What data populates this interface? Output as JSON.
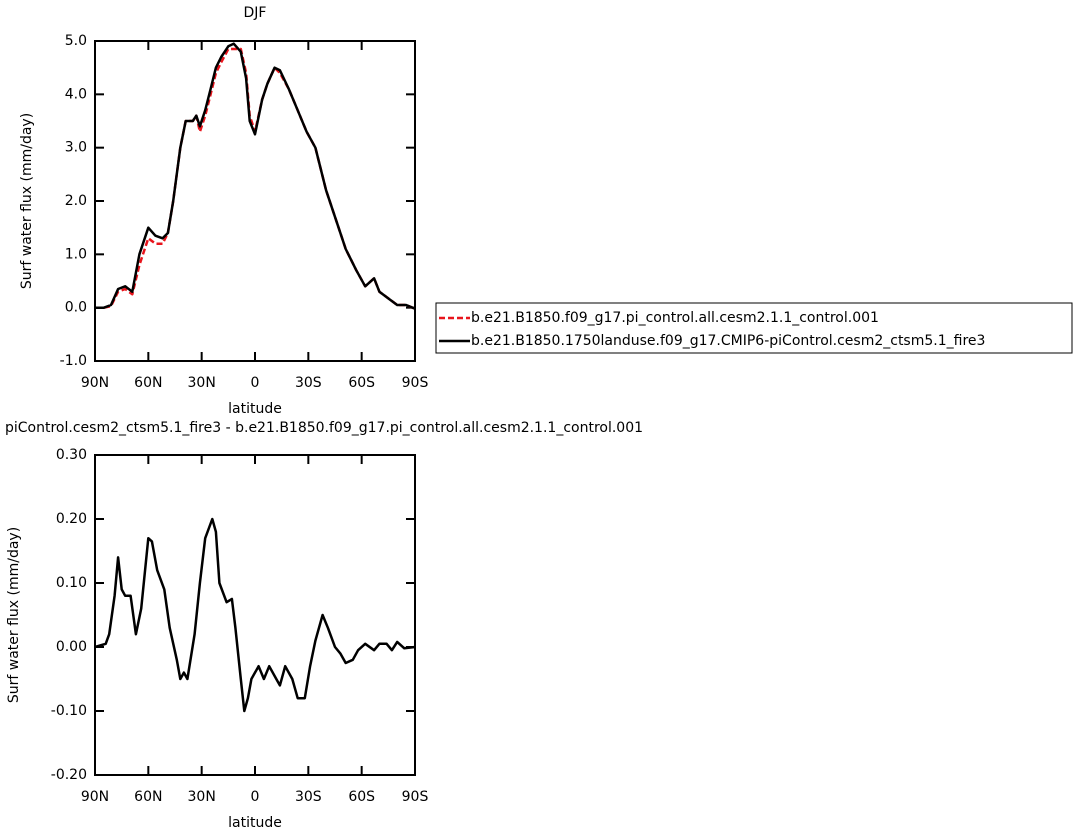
{
  "chart_data": [
    {
      "type": "line",
      "title": "DJF",
      "x_label": "latitude",
      "y_label": "Surf water flux (mm/day)",
      "x": [
        90,
        85,
        81,
        77,
        73,
        69,
        65,
        60,
        56,
        52,
        49,
        46,
        42,
        39,
        35,
        33,
        31,
        28,
        25,
        22,
        19,
        15,
        12,
        8,
        5,
        3,
        0,
        -4,
        -7,
        -11,
        -14,
        -19,
        -24,
        -29,
        -34,
        -40,
        -46,
        -51,
        -57,
        -62,
        -67,
        -70,
        -76,
        -80,
        -85,
        -90
      ],
      "series": [
        {
          "name": "b.e21.B1850.f09_g17.pi_control.all.cesm2.1.1_control.001",
          "color": "#e8141c",
          "line_style": "dashed",
          "values": [
            0.0,
            0.0,
            0.03,
            0.3,
            0.35,
            0.25,
            0.8,
            1.3,
            1.2,
            1.2,
            1.4,
            2.0,
            3.0,
            3.5,
            3.5,
            3.6,
            3.3,
            3.6,
            4.0,
            4.4,
            4.6,
            4.85,
            4.85,
            4.85,
            4.4,
            3.6,
            3.3,
            3.9,
            4.2,
            4.5,
            4.4,
            4.1,
            3.7,
            3.3,
            3.0,
            2.2,
            1.6,
            1.1,
            0.7,
            0.4,
            0.55,
            0.3,
            0.15,
            0.05,
            0.05,
            -0.02
          ]
        },
        {
          "name": "b.e21.B1850.1750landuse.f09_g17.CMIP6-piControl.cesm2_ctsm5.1_fire3",
          "color": "#000000",
          "line_style": "solid",
          "values": [
            0.0,
            0.0,
            0.05,
            0.35,
            0.4,
            0.3,
            1.0,
            1.5,
            1.35,
            1.3,
            1.4,
            2.0,
            3.0,
            3.5,
            3.5,
            3.6,
            3.4,
            3.7,
            4.1,
            4.5,
            4.7,
            4.9,
            4.95,
            4.8,
            4.3,
            3.5,
            3.25,
            3.9,
            4.2,
            4.5,
            4.45,
            4.1,
            3.7,
            3.3,
            3.0,
            2.2,
            1.6,
            1.1,
            0.7,
            0.4,
            0.55,
            0.3,
            0.15,
            0.05,
            0.05,
            -0.02
          ]
        }
      ],
      "xlim": [
        90,
        -90
      ],
      "xticks": [
        {
          "value": 90,
          "label": "90N"
        },
        {
          "value": 60,
          "label": "60N"
        },
        {
          "value": 30,
          "label": "30N"
        },
        0,
        {
          "value": -30,
          "label": "30S"
        },
        {
          "value": -60,
          "label": "60S"
        },
        {
          "value": -90,
          "label": "90S"
        }
      ],
      "ylim": [
        -1,
        5
      ],
      "yticks": [
        {
          "value": -1,
          "label": "-1.0"
        },
        {
          "value": 0,
          "label": "0.0"
        },
        {
          "value": 1,
          "label": "1.0"
        },
        {
          "value": 2,
          "label": "2.0"
        },
        {
          "value": 3,
          "label": "3.0"
        },
        {
          "value": 4,
          "label": "4.0"
        },
        {
          "value": 5,
          "label": "5.0"
        }
      ],
      "legend": "right"
    },
    {
      "type": "line",
      "title": "piControl.cesm2_ctsm5.1_fire3 - b.e21.B1850.f09_g17.pi_control.all.cesm2.1.1_control.001",
      "x_label": "latitude",
      "y_label": "Surf water flux (mm/day)",
      "x": [
        90,
        84,
        82,
        79,
        77,
        75,
        73,
        70,
        67,
        64,
        60,
        58,
        55,
        51,
        48,
        44,
        42,
        40,
        38,
        34,
        31,
        28,
        24,
        22,
        20,
        16,
        13,
        11,
        8,
        6,
        4,
        2,
        -2,
        -5,
        -8,
        -12,
        -14,
        -17,
        -21,
        -24,
        -28,
        -31,
        -34,
        -38,
        -41,
        -45,
        -48,
        -51,
        -55,
        -58,
        -62,
        -67,
        -70,
        -74,
        -77,
        -80,
        -84,
        -90
      ],
      "series": [
        {
          "color": "#000000",
          "line_style": "solid",
          "values": [
            0.0,
            0.005,
            0.02,
            0.08,
            0.14,
            0.09,
            0.08,
            0.08,
            0.02,
            0.06,
            0.17,
            0.165,
            0.12,
            0.09,
            0.03,
            -0.02,
            -0.05,
            -0.04,
            -0.05,
            0.02,
            0.1,
            0.17,
            0.2,
            0.18,
            0.1,
            0.07,
            0.075,
            0.03,
            -0.05,
            -0.1,
            -0.08,
            -0.05,
            -0.03,
            -0.05,
            -0.03,
            -0.05,
            -0.06,
            -0.03,
            -0.05,
            -0.08,
            -0.08,
            -0.03,
            0.01,
            0.05,
            0.03,
            0.0,
            -0.01,
            -0.025,
            -0.02,
            -0.005,
            0.005,
            -0.005,
            0.005,
            0.005,
            -0.005,
            0.008,
            -0.002,
            0.0
          ]
        }
      ],
      "xlim": [
        90,
        -90
      ],
      "xticks": [
        {
          "value": 90,
          "label": "90N"
        },
        {
          "value": 60,
          "label": "60N"
        },
        {
          "value": 30,
          "label": "30N"
        },
        0,
        {
          "value": -30,
          "label": "30S"
        },
        {
          "value": -60,
          "label": "60S"
        },
        {
          "value": -90,
          "label": "90S"
        }
      ],
      "ylim": [
        -0.2,
        0.3
      ],
      "yticks": [
        {
          "value": -0.2,
          "label": "-0.20"
        },
        {
          "value": -0.1,
          "label": "-0.10"
        },
        {
          "value": 0,
          "label": "0.00"
        },
        {
          "value": 0.1,
          "label": "0.10"
        },
        {
          "value": 0.2,
          "label": "0.20"
        },
        {
          "value": 0.3,
          "label": "0.30"
        }
      ]
    }
  ]
}
